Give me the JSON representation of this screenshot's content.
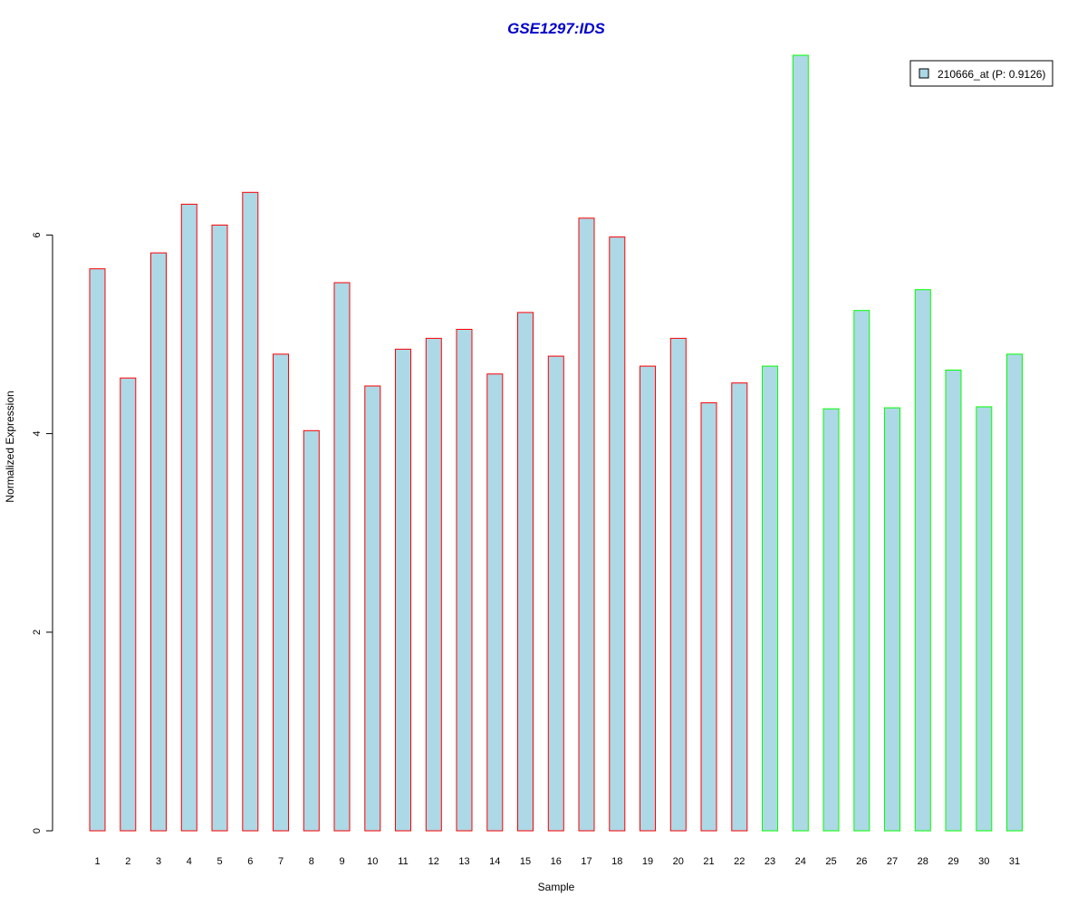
{
  "chart_data": {
    "type": "bar",
    "title": "GSE1297:IDS",
    "xlabel": "Sample",
    "ylabel": "Normalized Expression",
    "ylim": [
      0,
      7.8
    ],
    "y_ticks": [
      0,
      2,
      4,
      6
    ],
    "categories": [
      "1",
      "2",
      "3",
      "4",
      "5",
      "6",
      "7",
      "8",
      "9",
      "10",
      "11",
      "12",
      "13",
      "14",
      "15",
      "16",
      "17",
      "18",
      "19",
      "20",
      "21",
      "22",
      "23",
      "24",
      "25",
      "26",
      "27",
      "28",
      "29",
      "30",
      "31"
    ],
    "series": [
      {
        "name": "210666_at (P: 0.9126)",
        "values": [
          5.66,
          4.56,
          5.82,
          6.31,
          6.1,
          6.43,
          4.8,
          4.03,
          5.52,
          4.48,
          4.85,
          4.96,
          5.05,
          4.6,
          5.22,
          4.78,
          6.17,
          5.98,
          4.68,
          4.96,
          4.31,
          4.51,
          4.68,
          7.81,
          4.25,
          5.24,
          4.26,
          5.45,
          4.64,
          4.27,
          4.8
        ]
      }
    ],
    "fill_color": "#add8e6",
    "border_colors": [
      "#ff0000",
      "#ff0000",
      "#ff0000",
      "#ff0000",
      "#ff0000",
      "#ff0000",
      "#ff0000",
      "#ff0000",
      "#ff0000",
      "#ff0000",
      "#ff0000",
      "#ff0000",
      "#ff0000",
      "#ff0000",
      "#ff0000",
      "#ff0000",
      "#ff0000",
      "#ff0000",
      "#ff0000",
      "#ff0000",
      "#ff0000",
      "#ff0000",
      "#00ff00",
      "#00ff00",
      "#00ff00",
      "#00ff00",
      "#00ff00",
      "#00ff00",
      "#00ff00",
      "#00ff00",
      "#00ff00"
    ],
    "legend": {
      "label": "210666_at (P: 0.9126)",
      "placement": "top-right"
    },
    "grid": false
  }
}
